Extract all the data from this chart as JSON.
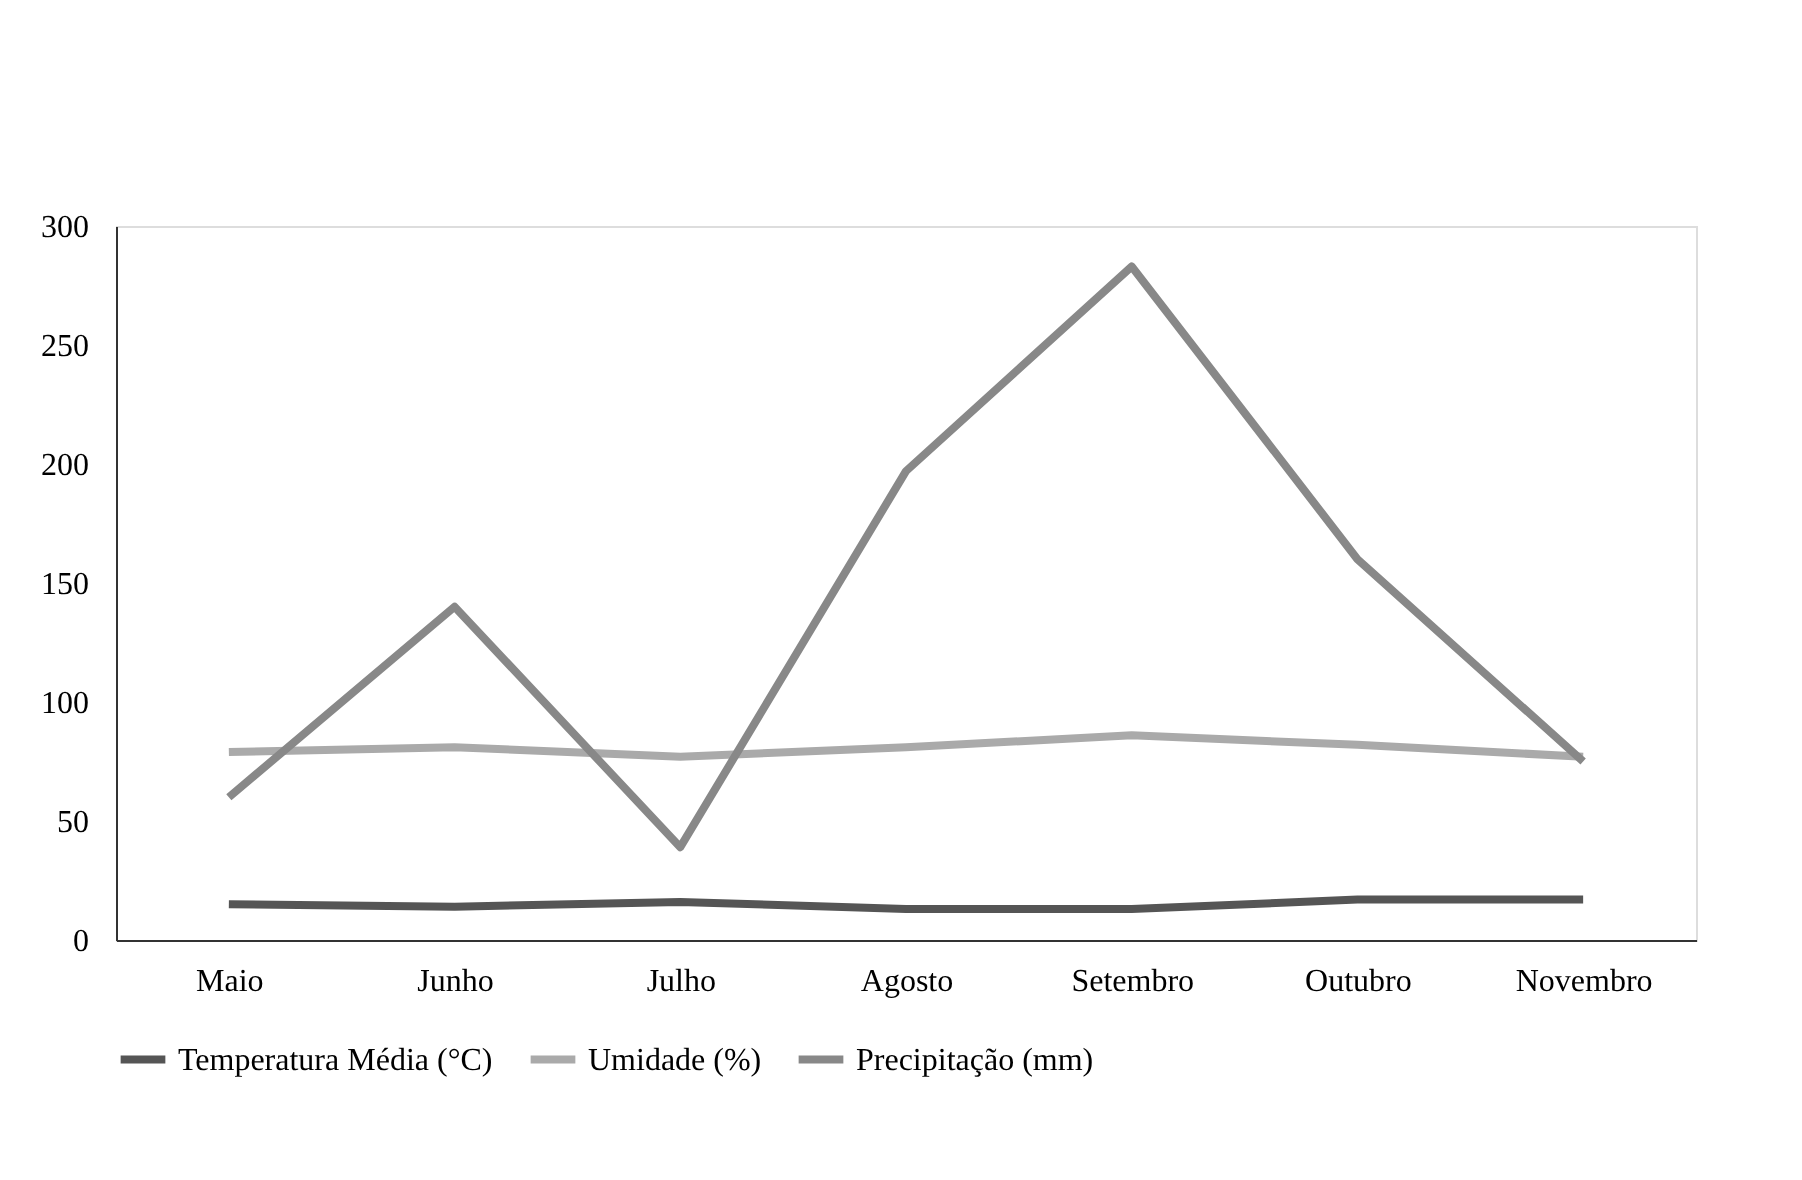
{
  "chart_data": {
    "type": "line",
    "categories": [
      "Maio",
      "Junho",
      "Julho",
      "Agosto",
      "Setembro",
      "Outubro",
      "Novembro"
    ],
    "series": [
      {
        "name": "Temperatura Média (°C)",
        "color": "#555555",
        "values": [
          15,
          14,
          16,
          13,
          13,
          17,
          17
        ]
      },
      {
        "name": "Umidade (%)",
        "color": "#aaaaaa",
        "values": [
          79,
          81,
          77,
          81,
          86,
          82,
          77
        ]
      },
      {
        "name": "Precipitação (mm)",
        "color": "#888888",
        "values": [
          60,
          140,
          39,
          197,
          283,
          160,
          75
        ]
      }
    ],
    "ylim": [
      0,
      300
    ],
    "yticks": [
      0,
      50,
      100,
      150,
      200,
      250,
      300
    ],
    "grid": false,
    "legend": "bottom",
    "marker": "none",
    "line_style": "solid"
  }
}
